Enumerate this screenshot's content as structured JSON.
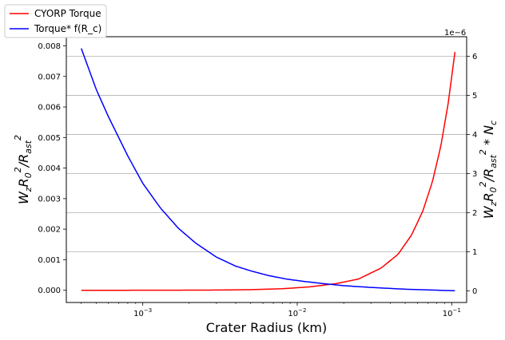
{
  "chart_data": {
    "type": "line",
    "xscale": "log",
    "xlabel": "Crater Radius (km)",
    "xlim": [
      0.00032,
      0.125
    ],
    "x_ticks": [
      {
        "value": 0.001,
        "base": "10",
        "exp": "−3"
      },
      {
        "value": 0.01,
        "base": "10",
        "exp": "−2"
      },
      {
        "value": 0.1,
        "base": "10",
        "exp": "−1"
      }
    ],
    "ylabel_left": "W_z R_0^2/R_ast^2",
    "ylim_left": [
      -0.0004,
      0.0083
    ],
    "yticks_left": [
      "0.000",
      "0.001",
      "0.002",
      "0.003",
      "0.004",
      "0.005",
      "0.006",
      "0.007",
      "0.008"
    ],
    "ylabel_right": "W_z R_0^2/R_ast^2 * N_c",
    "ylim_right": [
      -0.3,
      6.5
    ],
    "yticks_right": [
      "0",
      "1",
      "2",
      "3",
      "4",
      "5",
      "6"
    ],
    "right_offset_text": "1e−6",
    "grid": "horizontal lines at right-axis ticks",
    "legend_position": "top-left, outside plot",
    "series": [
      {
        "name": "CYORP Torque",
        "axis": "left",
        "color": "#ff0000",
        "x": [
          0.0004,
          0.0008,
          0.0015,
          0.003,
          0.005,
          0.008,
          0.012,
          0.018,
          0.025,
          0.035,
          0.045,
          0.055,
          0.065,
          0.075,
          0.085,
          0.095,
          0.105
        ],
        "values": [
          0.0,
          0.0,
          2e-06,
          7e-06,
          2e-05,
          5e-05,
          0.00011,
          0.00022,
          0.00037,
          0.00073,
          0.00118,
          0.00181,
          0.00259,
          0.00355,
          0.00471,
          0.00613,
          0.0078
        ]
      },
      {
        "name": "Torque* f(R_c)",
        "axis": "right",
        "color": "#0000ff",
        "x": [
          0.0004,
          0.0005,
          0.0006,
          0.0008,
          0.001,
          0.0013,
          0.0017,
          0.0022,
          0.003,
          0.004,
          0.005,
          0.0065,
          0.0085,
          0.011,
          0.015,
          0.02,
          0.03,
          0.05,
          0.08,
          0.105
        ],
        "values": [
          6.2,
          5.15,
          4.45,
          3.45,
          2.75,
          2.12,
          1.6,
          1.22,
          0.86,
          0.63,
          0.51,
          0.39,
          0.3,
          0.24,
          0.18,
          0.13,
          0.085,
          0.04,
          0.015,
          0.0
        ]
      }
    ]
  }
}
